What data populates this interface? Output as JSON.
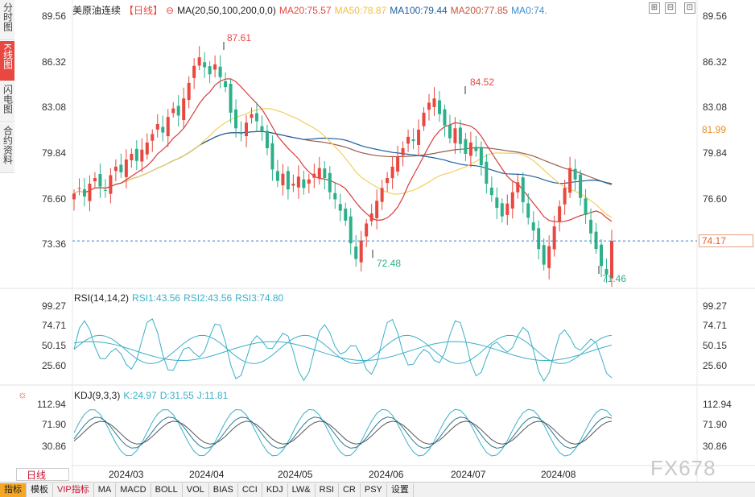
{
  "side_tabs": [
    "分时图",
    "K线图",
    "闪电图",
    "合约资料"
  ],
  "header": {
    "title": "美原油连续",
    "period": "【日线】",
    "ma_label": "MA(20,50,100,200,0,0)",
    "ma20": "MA20:75.57",
    "ma50": "MA50:78.87",
    "ma100": "MA100:79.44",
    "ma200": "MA200:77.85",
    "ma0": "MA0:74."
  },
  "rsi_header": {
    "label": "RSI(14,14,2)",
    "rsi1": "RSI1:43.56",
    "rsi2": "RSI2:43.56",
    "rsi3": "RSI3:74.80"
  },
  "kdj_header": {
    "label": "KDJ(9,3,3)",
    "k": "K:24.97",
    "d": "D:31.55",
    "j": "J:11.81"
  },
  "price_axis": [
    "89.56",
    "86.32",
    "83.08",
    "79.84",
    "76.60",
    "73.36"
  ],
  "rsi_axis": [
    "99.27",
    "74.71",
    "50.15",
    "25.60"
  ],
  "kdj_axis": [
    "112.94",
    "71.90",
    "30.86"
  ],
  "current_price": "74.17",
  "ma200_axis_value": "81.99",
  "annotations": {
    "high1": "87.61",
    "high2": "84.52",
    "low1": "72.48",
    "low2": "71.46"
  },
  "x_axis": [
    "2024/03",
    "2024/04",
    "2024/05",
    "2024/06",
    "2024/07",
    "2024/08"
  ],
  "period_button": "日线",
  "bottom_buttons": [
    "指标",
    "模板",
    "VIP指标",
    "MA",
    "MACD",
    "BOLL",
    "VOL",
    "BIAS",
    "CCI",
    "KDJ",
    "LW&",
    "RSI",
    "CR",
    "PSY",
    "设置"
  ],
  "watermark": "FX678",
  "colors": {
    "up": "#e8483f",
    "down": "#2db08a",
    "ma20": "#d93b3b",
    "ma50": "#f0d060",
    "ma100": "#1f5fa0",
    "ma200": "#9a5a4a"
  },
  "chart_data": {
    "type": "candlestick",
    "title": "美原油连续",
    "ylim": [
      71.0,
      90.0
    ],
    "x_range": [
      "2024/02",
      "2024/08"
    ],
    "current_price": 74.17,
    "annotated_high": [
      87.61,
      84.52
    ],
    "annotated_low": [
      72.48,
      71.46
    ],
    "closes": [
      77.5,
      77.9,
      77.3,
      78.2,
      78.6,
      78.0,
      77.7,
      78.8,
      79.4,
      79.0,
      79.9,
      80.3,
      79.8,
      80.6,
      81.1,
      81.7,
      82.4,
      81.8,
      82.9,
      83.5,
      83.0,
      84.2,
      85.3,
      86.5,
      87.1,
      86.4,
      85.9,
      86.6,
      85.7,
      85.0,
      83.2,
      82.1,
      81.7,
      82.5,
      83.1,
      82.6,
      81.9,
      80.7,
      79.2,
      78.4,
      78.9,
      77.8,
      78.2,
      78.7,
      77.9,
      78.5,
      78.9,
      79.3,
      78.6,
      77.6,
      77.1,
      76.3,
      75.6,
      74.0,
      72.9,
      74.2,
      75.4,
      76.1,
      77.0,
      77.9,
      78.6,
      79.4,
      80.1,
      80.7,
      81.5,
      81.2,
      82.0,
      83.2,
      83.9,
      84.2,
      83.1,
      82.3,
      81.4,
      82.1,
      81.0,
      80.3,
      81.1,
      80.5,
      79.5,
      78.2,
      77.4,
      76.5,
      75.9,
      76.8,
      77.6,
      78.3,
      76.9,
      75.8,
      74.9,
      73.6,
      72.5,
      73.8,
      75.2,
      76.6,
      77.9,
      79.3,
      78.5,
      77.2,
      76.0,
      74.7,
      73.6,
      72.4,
      71.8,
      74.17
    ],
    "rsi": {
      "rsi1": 43.56,
      "rsi2": 43.56,
      "rsi3": 74.8
    },
    "kdj": {
      "k": 24.97,
      "d": 31.55,
      "j": 11.81
    }
  }
}
